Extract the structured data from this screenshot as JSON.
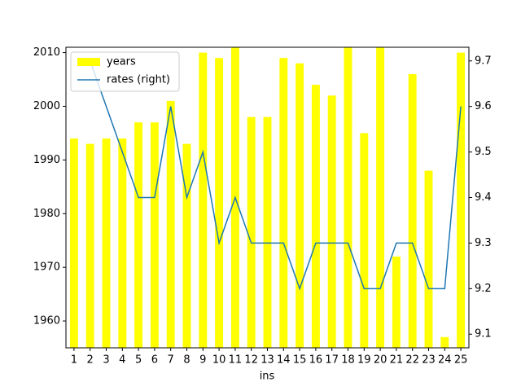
{
  "chart_data": {
    "type": "bar_line",
    "x_label": "ins",
    "categories": [
      "1",
      "2",
      "3",
      "4",
      "5",
      "6",
      "7",
      "8",
      "9",
      "10",
      "11",
      "12",
      "13",
      "14",
      "15",
      "16",
      "17",
      "18",
      "19",
      "20",
      "21",
      "22",
      "23",
      "24",
      "25"
    ],
    "series": [
      {
        "name": "years",
        "color": "#ffff00",
        "type": "bar",
        "values": [
          1994,
          1993,
          1994,
          1994,
          1997,
          1997,
          2001,
          1993,
          2010,
          2009,
          2011,
          1998,
          1998,
          2009,
          2008,
          2004,
          2002,
          2011,
          1995,
          2011,
          1972,
          2006,
          1988,
          1957,
          2010
        ]
      },
      {
        "name": "rates (right)",
        "color": "#1f77b4",
        "type": "line",
        "axis": "y2",
        "values": [
          null,
          9.7,
          9.6,
          9.5,
          9.4,
          9.4,
          9.6,
          9.4,
          9.5,
          9.3,
          9.4,
          9.3,
          9.3,
          9.3,
          9.2,
          9.3,
          9.3,
          9.3,
          9.2,
          9.2,
          9.3,
          9.3,
          9.2,
          9.2,
          9.6
        ]
      }
    ],
    "ylim": [
      1955,
      2011
    ],
    "yticks": [
      1960,
      1970,
      1980,
      1990,
      2000,
      2010
    ],
    "y2lim": [
      9.07,
      9.73
    ],
    "y2ticks": [
      9.1,
      9.2,
      9.3,
      9.4,
      9.5,
      9.6,
      9.7
    ],
    "legend": "upper left"
  }
}
